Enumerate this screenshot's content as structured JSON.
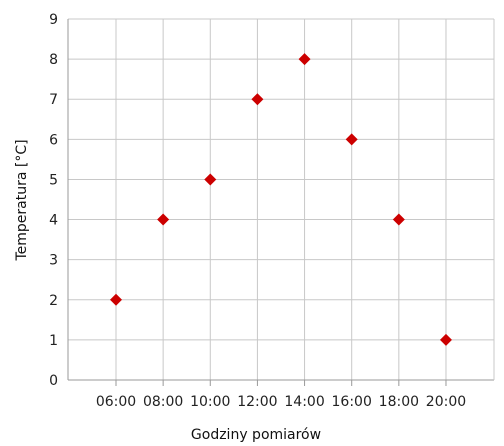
{
  "chart_data": {
    "type": "scatter",
    "title": "",
    "xlabel": "Godziny pomiarów",
    "ylabel": "Temperatura [°C]",
    "x": [
      "06:00",
      "08:00",
      "10:00",
      "12:00",
      "14:00",
      "16:00",
      "18:00",
      "20:00"
    ],
    "y": [
      2,
      4,
      5,
      7,
      8,
      6,
      4,
      1
    ],
    "categories": [
      "06:00",
      "08:00",
      "10:00",
      "12:00",
      "14:00",
      "16:00",
      "18:00",
      "20:00"
    ],
    "ylim": [
      0,
      9
    ],
    "yticks": [
      0,
      1,
      2,
      3,
      4,
      5,
      6,
      7,
      8,
      9
    ],
    "grid": true,
    "marker": "diamond",
    "marker_color": "#cc0000",
    "legend": "none"
  }
}
